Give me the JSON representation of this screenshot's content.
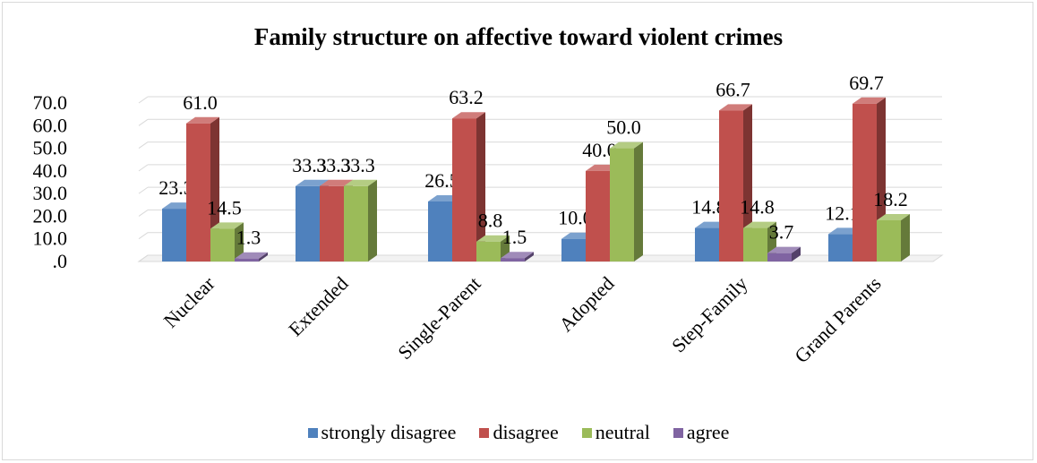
{
  "chart_data": {
    "type": "bar",
    "title": "Family structure on affective toward violent crimes",
    "xlabel": "",
    "ylabel": "",
    "ylim": [
      0,
      70
    ],
    "yticks": [
      ".0",
      "10.0",
      "20.0",
      "30.0",
      "40.0",
      "50.0",
      "60.0",
      "70.0"
    ],
    "grid": true,
    "legend_position": "bottom",
    "categories": [
      "Nuclear",
      "Extended",
      "Single-Parent",
      "Adopted",
      "Step-Family",
      "Grand Parents"
    ],
    "series": [
      {
        "name": "strongly disagree",
        "color": "#4f81bd",
        "values": [
          23.3,
          33.3,
          26.5,
          10.0,
          14.8,
          12.1
        ]
      },
      {
        "name": "disagree",
        "color": "#c0504d",
        "values": [
          61.0,
          33.3,
          63.2,
          40.0,
          66.7,
          69.7
        ]
      },
      {
        "name": "neutral",
        "color": "#9bbb59",
        "values": [
          14.5,
          33.3,
          8.8,
          50.0,
          14.8,
          18.2
        ]
      },
      {
        "name": "agree",
        "color": "#8064a2",
        "values": [
          1.3,
          null,
          1.5,
          null,
          3.7,
          null
        ]
      }
    ]
  }
}
